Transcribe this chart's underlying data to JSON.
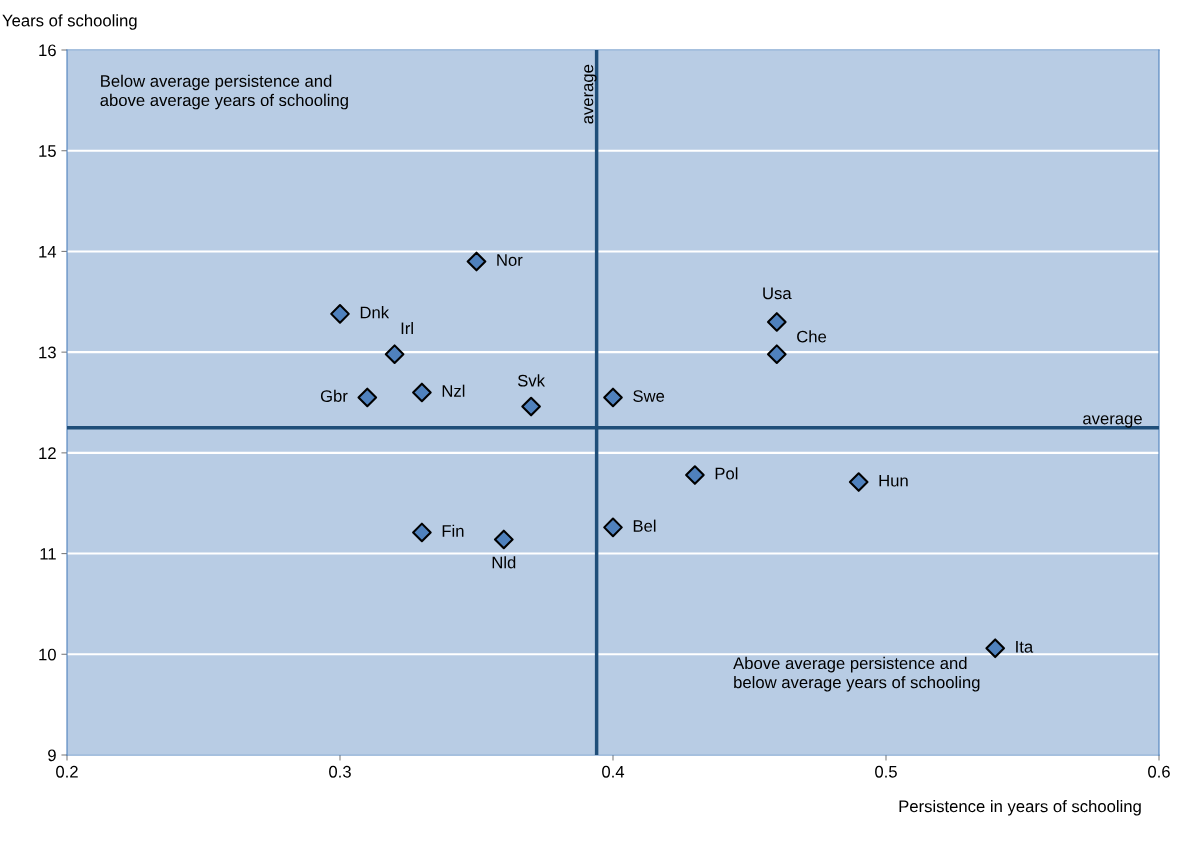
{
  "chart_data": {
    "type": "scatter",
    "xlabel": "Persistence in years of schooling",
    "ylabel": "Years of schooling",
    "x": [
      0.35,
      0.3,
      0.32,
      0.31,
      0.33,
      0.37,
      0.4,
      0.46,
      0.46,
      0.43,
      0.49,
      0.4,
      0.33,
      0.36,
      0.54
    ],
    "series": [
      {
        "color": "#4f81bd",
        "values": [
          13.9,
          13.38,
          12.98,
          12.55,
          12.6,
          12.46,
          12.55,
          13.3,
          12.98,
          11.78,
          11.71,
          11.26,
          11.21,
          11.14,
          10.06
        ]
      }
    ],
    "marker": "diamond",
    "grid": "y",
    "xlim": [
      0.2,
      0.6
    ],
    "xticks": [
      0.2,
      0.3,
      0.4,
      0.5,
      0.6
    ],
    "ylim": [
      9,
      16
    ],
    "yticks": [
      9,
      10,
      11,
      12,
      13,
      14,
      15,
      16
    ],
    "ref_lines": [
      {
        "axis": "x",
        "value": 0.394,
        "label": "average",
        "color": "#1f4e79"
      },
      {
        "axis": "y",
        "value": 12.25,
        "label": "average",
        "color": "#1f4e79"
      }
    ],
    "annotations": [
      {
        "text": "Nor",
        "x": 0.35,
        "y": 13.9
      },
      {
        "text": "Dnk",
        "x": 0.3,
        "y": 13.38
      },
      {
        "text": "Irl",
        "x": 0.32,
        "y": 12.98
      },
      {
        "text": "Gbr",
        "x": 0.31,
        "y": 12.55
      },
      {
        "text": "Nzl",
        "x": 0.33,
        "y": 12.6
      },
      {
        "text": "Svk",
        "x": 0.37,
        "y": 12.46
      },
      {
        "text": "Swe",
        "x": 0.4,
        "y": 12.55
      },
      {
        "text": "Usa",
        "x": 0.46,
        "y": 13.3
      },
      {
        "text": "Che",
        "x": 0.46,
        "y": 12.98
      },
      {
        "text": "Pol",
        "x": 0.43,
        "y": 11.78
      },
      {
        "text": "Hun",
        "x": 0.49,
        "y": 11.71
      },
      {
        "text": "Bel",
        "x": 0.4,
        "y": 11.26
      },
      {
        "text": "Fin",
        "x": 0.33,
        "y": 11.21
      },
      {
        "text": "Nld",
        "x": 0.36,
        "y": 11.14
      },
      {
        "text": "Ita",
        "x": 0.54,
        "y": 10.06
      },
      "Below average persistence and\nabove average years of schooling",
      "Above average persistence and\nbelow average years of schooling"
    ]
  }
}
